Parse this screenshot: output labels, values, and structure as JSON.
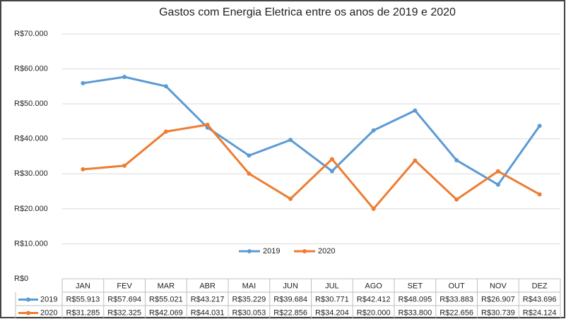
{
  "chart_data": {
    "type": "line",
    "title": "Gastos com Energia Eletrica entre os anos de 2019 e 2020",
    "categories": [
      "JAN",
      "FEV",
      "MAR",
      "ABR",
      "MAI",
      "JUN",
      "JUL",
      "AGO",
      "SET",
      "OUT",
      "NOV",
      "DEZ"
    ],
    "series": [
      {
        "name": "2019",
        "color": "#5b9bd5",
        "values": [
          55913,
          57694,
          55021,
          43217,
          35229,
          39684,
          30771,
          42412,
          48095,
          33883,
          26907,
          43696
        ],
        "value_labels": [
          "R$55.913",
          "R$57.694",
          "R$55.021",
          "R$43.217",
          "R$35.229",
          "R$39.684",
          "R$30.771",
          "R$42.412",
          "R$48.095",
          "R$33.883",
          "R$26.907",
          "R$43.696"
        ]
      },
      {
        "name": "2020",
        "color": "#ed7d31",
        "values": [
          31285,
          32325,
          42069,
          44031,
          30053,
          22856,
          34204,
          20000,
          33800,
          22656,
          30739,
          24124
        ],
        "value_labels": [
          "R$31.285",
          "R$32.325",
          "R$42.069",
          "R$44.031",
          "R$30.053",
          "R$22.856",
          "R$34.204",
          "R$20.000",
          "R$33.800",
          "R$22.656",
          "R$30.739",
          "R$24.124"
        ]
      }
    ],
    "ylim": [
      0,
      70000
    ],
    "yticks": [
      {
        "value": 0,
        "label": "R$0"
      },
      {
        "value": 10000,
        "label": "R$10.000"
      },
      {
        "value": 20000,
        "label": "R$20.000"
      },
      {
        "value": 30000,
        "label": "R$30.000"
      },
      {
        "value": 40000,
        "label": "R$40.000"
      },
      {
        "value": 50000,
        "label": "R$50.000"
      },
      {
        "value": 60000,
        "label": "R$60.000"
      },
      {
        "value": 70000,
        "label": "R$70.000"
      }
    ],
    "grid": true,
    "legend": "bottom"
  }
}
